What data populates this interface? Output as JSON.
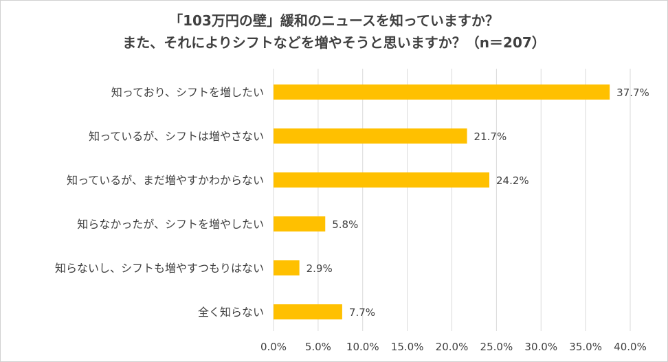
{
  "chart_data": {
    "type": "bar",
    "orientation": "horizontal",
    "title_lines": [
      "「103万円の壁」緩和のニュースを知っていますか？",
      "また、それによりシフトなどを増やそうと思いますか？（n＝207）"
    ],
    "categories": [
      "知っており、シフトを増したい",
      "知っているが、シフトは増やさない",
      "知っているが、まだ増やすかわからない",
      "知らなかったが、シフトを増やしたい",
      "知らないし、シフトも増やすつもりはない",
      "全く知らない"
    ],
    "values": [
      37.7,
      21.7,
      24.2,
      5.8,
      2.9,
      7.7
    ],
    "data_labels": [
      "37.7%",
      "21.7%",
      "24.2%",
      "5.8%",
      "2.9%",
      "7.7%"
    ],
    "xlim": [
      0,
      40
    ],
    "x_ticks": [
      "0.0%",
      "5.0%",
      "10.0%",
      "15.0%",
      "20.0%",
      "25.0%",
      "30.0%",
      "35.0%",
      "40.0%"
    ],
    "grid": "vertical",
    "bar_color": "#FFC000",
    "grid_color": "#D9D9D9"
  }
}
